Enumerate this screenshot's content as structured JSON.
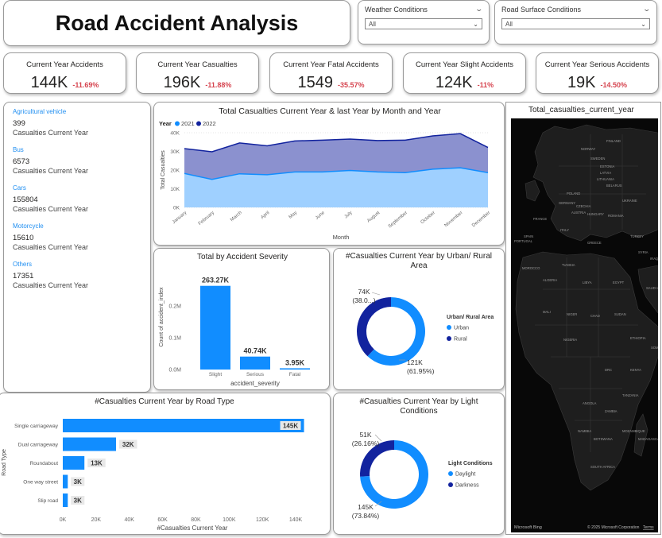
{
  "header": {
    "title": "Road Accident Analysis"
  },
  "slicers": [
    {
      "label": "Weather Conditions",
      "value": "All"
    },
    {
      "label": "Road Surface Conditions",
      "value": "All"
    }
  ],
  "kpis": [
    {
      "label": "Current Year Accidents",
      "value": "144K",
      "change": "-11.69%"
    },
    {
      "label": "Current Year Casualties",
      "value": "196K",
      "change": "-11.88%"
    },
    {
      "label": "Current Year Fatal Accidents",
      "value": "1549",
      "change": "-35.57%"
    },
    {
      "label": "Current Year Slight Accidents",
      "value": "124K",
      "change": "-11%"
    },
    {
      "label": "Current Year Serious Accidents",
      "value": "19K",
      "change": "-14.50%"
    }
  ],
  "vehicles": [
    {
      "name": "Agricultural vehicle",
      "value": "399",
      "sub": "Casualties Current Year"
    },
    {
      "name": "Bus",
      "value": "6573",
      "sub": "Casualties Current Year"
    },
    {
      "name": "Cars",
      "value": "155804",
      "sub": "Casualties Current Year"
    },
    {
      "name": "Motorcycle",
      "value": "15610",
      "sub": "Casualties Current Year"
    },
    {
      "name": "Others",
      "value": "17351",
      "sub": "Casualties Current Year"
    }
  ],
  "colors": {
    "light": "#118dff",
    "dark": "#12239e",
    "negative": "#d64550",
    "area_light": "#9fd0ff",
    "area_dark": "#8b91cf"
  },
  "chart_data": [
    {
      "id": "monthly",
      "type": "area",
      "title": "Total Casualties Current Year & last Year by Month and Year",
      "legend_title": "Year",
      "xlabel": "Month",
      "ylabel": "Total Casualties",
      "categories": [
        "January",
        "February",
        "March",
        "April",
        "May",
        "June",
        "July",
        "August",
        "September",
        "October",
        "November",
        "December"
      ],
      "y_ticks": [
        "0K",
        "10K",
        "20K",
        "30K",
        "40K"
      ],
      "ylim": [
        0,
        40000
      ],
      "series": [
        {
          "name": "2021",
          "values": [
            18200,
            15000,
            18000,
            17500,
            19000,
            19000,
            19800,
            19000,
            18600,
            20500,
            21200,
            18600
          ]
        },
        {
          "name": "2022",
          "values": [
            31500,
            29800,
            34500,
            33000,
            35600,
            36000,
            36600,
            35800,
            36000,
            38300,
            39500,
            32100
          ]
        }
      ]
    },
    {
      "id": "severity",
      "type": "bar",
      "title": "Total by Accident Severity",
      "xlabel": "accident_severity",
      "ylabel": "Count of accident_index",
      "categories": [
        "Slight",
        "Serious",
        "Fatal"
      ],
      "values": [
        263270,
        40740,
        3950
      ],
      "data_labels": [
        "263.27K",
        "40.74K",
        "3.95K"
      ],
      "y_ticks": [
        "0.0M",
        "0.1M",
        "0.2M"
      ],
      "ylim": [
        0,
        300000
      ]
    },
    {
      "id": "urban",
      "type": "pie",
      "title": "#Casualties Current Year by Urban/ Rural Area",
      "legend_title": "Urban/ Rural Area",
      "categories": [
        "Urban",
        "Rural"
      ],
      "values": [
        121000,
        74000
      ],
      "percents": [
        61.95,
        38.05
      ],
      "labels": [
        [
          "121K",
          "(61.95%)"
        ],
        [
          "74K",
          "(38.0...)"
        ]
      ]
    },
    {
      "id": "roadtype",
      "type": "bar",
      "orientation": "horizontal",
      "title": "#Casualties Current Year by Road Type",
      "xlabel": "#Casualties Current Year",
      "ylabel": "Road Type",
      "categories": [
        "Single carriageway",
        "Dual carriageway",
        "Roundabout",
        "One way street",
        "Slip road"
      ],
      "values": [
        145000,
        32000,
        13000,
        3000,
        3000
      ],
      "data_labels": [
        "145K",
        "32K",
        "13K",
        "3K",
        "3K"
      ],
      "x_ticks": [
        "0K",
        "20K",
        "40K",
        "60K",
        "80K",
        "100K",
        "120K",
        "140K"
      ],
      "xlim": [
        0,
        150000
      ]
    },
    {
      "id": "light",
      "type": "pie",
      "title": "#Casualties Current Year by Light Conditions",
      "legend_title": "Light Conditions",
      "categories": [
        "Daylight",
        "Darkness"
      ],
      "values": [
        145000,
        51000
      ],
      "percents": [
        73.84,
        26.16
      ],
      "labels": [
        [
          "145K",
          "(73.84%)"
        ],
        [
          "51K",
          "(26.16%)"
        ]
      ]
    }
  ],
  "map": {
    "title": "Total_casualties_current_year",
    "countries": [
      "FINLAND",
      "NORWAY",
      "SWEDEN",
      "ESTONIA",
      "LATVIA",
      "LITHUANIA",
      "BELARUS",
      "POLAND",
      "UKRAINE",
      "GERMANY",
      "CZECHIA",
      "AUSTRIA",
      "HUNGARY",
      "ROMANIA",
      "FRANCE",
      "ITALY",
      "SPAIN",
      "PORTUGAL",
      "GREECE",
      "TURKEY",
      "SYRIA",
      "IRAQ",
      "MOROCCO",
      "ALGERIA",
      "TUNISIA",
      "LIBYA",
      "EGYPT",
      "SAUDI ARABIA",
      "MALI",
      "NIGER",
      "CHAD",
      "SUDAN",
      "NIGERIA",
      "ETHIOPIA",
      "SOMALIA",
      "KENYA",
      "DRC",
      "TANZANIA",
      "ANGOLA",
      "ZAMBIA",
      "NAMIBIA",
      "BOTSWANA",
      "MOZAMBIQUE",
      "SOUTH AFRICA",
      "MADAGASCAR"
    ],
    "attribution_left": "Microsoft Bing",
    "attribution_right": "© 2025 Microsoft Corporation",
    "terms": "Terms"
  }
}
